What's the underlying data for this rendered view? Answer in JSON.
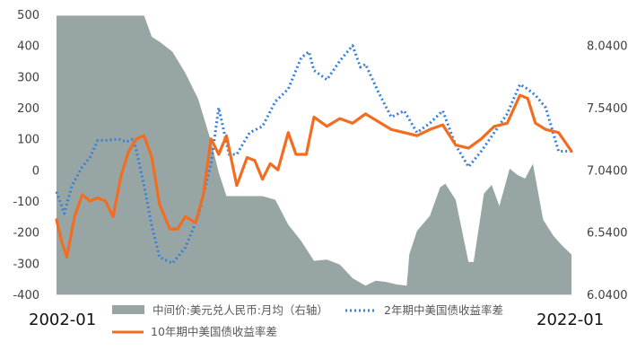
{
  "chart_data": {
    "type": "line",
    "title": "",
    "x_start_label": "2002-01",
    "x_end_label": "2022-01",
    "y_left": {
      "ticks": [
        "500",
        "400",
        "300",
        "200",
        "100",
        "0",
        "-100",
        "-200",
        "-300",
        "-400"
      ],
      "range": [
        -400,
        500
      ]
    },
    "y_right": {
      "ticks": [
        "8.0400",
        "7.5400",
        "7.0400",
        "6.5400",
        "6.0400"
      ],
      "range": [
        6.04,
        8.29
      ]
    },
    "legend": {
      "fx": "中间价:美元兑人民币:月均（右轴）",
      "y2": "2年期中美国债收益率差",
      "y10": "10年期中美国债收益率差"
    },
    "colors": {
      "fx": "#97a6a5",
      "y2": "#3a7fd8",
      "y10": "#f26d21"
    },
    "series": [
      {
        "name": "中间价:美元兑人民币:月均（右轴）",
        "axis": "right",
        "style": "area",
        "x": [
          2002.0,
          2005.4,
          2005.7,
          2006.0,
          2006.5,
          2007.0,
          2007.5,
          2008.0,
          2008.3,
          2008.6,
          2009.0,
          2010.0,
          2010.5,
          2011.0,
          2011.5,
          2012.0,
          2012.5,
          2013.0,
          2013.5,
          2014.0,
          2014.4,
          2014.8,
          2015.2,
          2015.6,
          2015.65,
          2015.7,
          2016.0,
          2016.5,
          2016.9,
          2017.1,
          2017.5,
          2018.0,
          2018.2,
          2018.6,
          2018.9,
          2019.2,
          2019.6,
          2019.9,
          2020.2,
          2020.5,
          2020.9,
          2021.3,
          2021.6,
          2022.0
        ],
        "values": [
          8.28,
          8.28,
          8.11,
          8.07,
          7.99,
          7.82,
          7.61,
          7.27,
          7.02,
          6.83,
          6.83,
          6.83,
          6.8,
          6.6,
          6.47,
          6.31,
          6.32,
          6.28,
          6.17,
          6.11,
          6.15,
          6.14,
          6.12,
          6.11,
          6.23,
          6.36,
          6.55,
          6.67,
          6.9,
          6.93,
          6.8,
          6.3,
          6.3,
          6.85,
          6.92,
          6.75,
          7.05,
          7.0,
          6.97,
          7.09,
          6.64,
          6.51,
          6.44,
          6.36
        ]
      },
      {
        "name": "2年期中美国债收益率差",
        "axis": "left",
        "style": "dotted",
        "x": [
          2002.0,
          2002.3,
          2002.6,
          2003.0,
          2003.3,
          2003.6,
          2004.0,
          2004.4,
          2004.7,
          2005.0,
          2005.4,
          2005.7,
          2006.0,
          2006.5,
          2007.0,
          2007.5,
          2008.0,
          2008.3,
          2008.7,
          2009.0,
          2009.5,
          2010.0,
          2010.5,
          2011.0,
          2011.5,
          2011.8,
          2012.0,
          2012.5,
          2013.0,
          2013.5,
          2013.8,
          2014.0,
          2014.5,
          2015.0,
          2015.5,
          2016.0,
          2016.5,
          2017.0,
          2017.5,
          2018.0,
          2018.5,
          2019.0,
          2019.5,
          2020.0,
          2020.3,
          2020.6,
          2021.0,
          2021.5,
          2022.0
        ],
        "values": [
          -70,
          -140,
          -50,
          10,
          40,
          95,
          95,
          100,
          90,
          100,
          -50,
          -180,
          -280,
          -300,
          -250,
          -150,
          20,
          200,
          50,
          50,
          120,
          140,
          220,
          260,
          360,
          380,
          320,
          290,
          350,
          400,
          330,
          340,
          250,
          170,
          190,
          120,
          150,
          190,
          80,
          10,
          60,
          120,
          180,
          275,
          260,
          240,
          200,
          60,
          60
        ]
      },
      {
        "name": "10年期中美国债收益率差",
        "axis": "left",
        "style": "solid",
        "x": [
          2002.0,
          2002.2,
          2002.4,
          2002.7,
          2003.0,
          2003.3,
          2003.6,
          2003.9,
          2004.2,
          2004.5,
          2004.8,
          2005.1,
          2005.4,
          2005.7,
          2006.0,
          2006.4,
          2006.7,
          2007.0,
          2007.4,
          2007.7,
          2008.0,
          2008.3,
          2008.6,
          2009.0,
          2009.4,
          2009.7,
          2010.0,
          2010.3,
          2010.6,
          2011.0,
          2011.3,
          2011.7,
          2012.0,
          2012.5,
          2013.0,
          2013.5,
          2014.0,
          2014.5,
          2015.0,
          2015.5,
          2016.0,
          2016.5,
          2017.0,
          2017.5,
          2018.0,
          2018.5,
          2019.0,
          2019.5,
          2020.0,
          2020.3,
          2020.6,
          2021.0,
          2021.5,
          2022.0
        ],
        "values": [
          -160,
          -230,
          -280,
          -150,
          -80,
          -100,
          -90,
          -100,
          -150,
          -20,
          60,
          100,
          110,
          40,
          -110,
          -190,
          -190,
          -150,
          -170,
          -80,
          100,
          50,
          110,
          -50,
          40,
          30,
          -30,
          20,
          0,
          120,
          50,
          50,
          170,
          140,
          165,
          150,
          180,
          155,
          130,
          120,
          110,
          130,
          145,
          80,
          70,
          100,
          140,
          150,
          240,
          230,
          150,
          130,
          120,
          60
        ]
      }
    ]
  }
}
